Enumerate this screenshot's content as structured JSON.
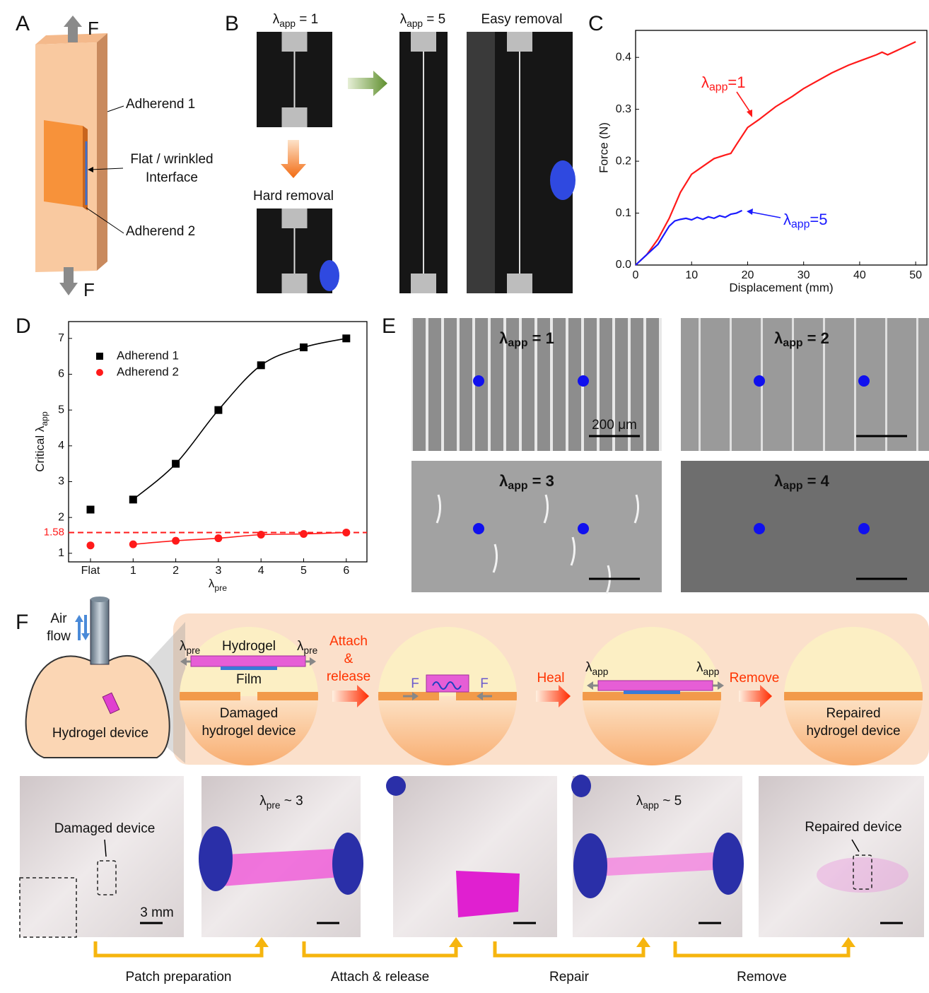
{
  "panel_labels": [
    "A",
    "B",
    "C",
    "D",
    "E",
    "F"
  ],
  "panel_a": {
    "force_top": "F",
    "force_bottom": "F",
    "adherend_1": "Adherend 1",
    "interface": [
      "Flat / wrinkled",
      "Interface"
    ],
    "adherend_2": "Adherend 2"
  },
  "panel_b": {
    "top_left": {
      "t": "λ",
      "sub": "app",
      "after": " = 1"
    },
    "middle": {
      "t": "λ",
      "sub": "app",
      "after": " = 5"
    },
    "right": "Easy removal",
    "bottom_left": "Hard removal"
  },
  "chart_data": [
    {
      "type": "line",
      "xlabel": "Displacement (mm)",
      "ylabel": "Force (N)",
      "xlim": [
        0,
        52
      ],
      "ylim": [
        0,
        0.452
      ],
      "xticks": [
        0,
        10,
        20,
        30,
        40,
        50
      ],
      "yticks": [
        {
          "value": 0,
          "label": "0.0"
        },
        0.1,
        0.2,
        0.3,
        0.4
      ],
      "series": [
        {
          "name": {
            "t": "λ",
            "sub": "app",
            "after": "=1"
          },
          "color": "#ff1a1a",
          "x": [
            0,
            2,
            4,
            6,
            8,
            10,
            12,
            14,
            16,
            17,
            18,
            20,
            22,
            25,
            28,
            30,
            35,
            38,
            40,
            43,
            44,
            45,
            48,
            50
          ],
          "values": [
            0,
            0.02,
            0.05,
            0.09,
            0.14,
            0.175,
            0.19,
            0.205,
            0.212,
            0.215,
            0.232,
            0.265,
            0.28,
            0.305,
            0.325,
            0.34,
            0.37,
            0.385,
            0.393,
            0.405,
            0.41,
            0.405,
            0.42,
            0.43
          ]
        },
        {
          "name": {
            "t": "λ",
            "sub": "app",
            "after": "=5"
          },
          "color": "#1a1aff",
          "x": [
            0,
            2,
            4,
            6,
            7,
            8,
            9,
            10,
            11,
            12,
            13,
            14,
            15,
            16,
            17,
            18,
            19
          ],
          "values": [
            0,
            0.02,
            0.04,
            0.075,
            0.085,
            0.088,
            0.09,
            0.087,
            0.092,
            0.088,
            0.093,
            0.09,
            0.095,
            0.092,
            0.098,
            0.1,
            0.105
          ]
        }
      ]
    },
    {
      "type": "scatter",
      "xlabel": {
        "t": "λ",
        "sub": "pre"
      },
      "ylabel": {
        "t": "Critical λ",
        "sub": "app"
      },
      "categories": [
        "Flat",
        "1",
        "2",
        "3",
        "4",
        "5",
        "6"
      ],
      "ylim": [
        0.76,
        7.47
      ],
      "yticks": [
        1,
        2,
        3,
        4,
        5,
        6,
        7
      ],
      "reference_line": {
        "value": 1.58,
        "label": "1.58",
        "color": "#ff1a1a"
      },
      "series": [
        {
          "name": "Adherend 1",
          "color": "#000000",
          "marker": "square",
          "values": [
            2.22,
            2.5,
            3.5,
            5.0,
            6.25,
            6.75,
            7.0
          ]
        },
        {
          "name": "Adherend 2",
          "color": "#ff1a1a",
          "marker": "circle",
          "values": [
            1.22,
            1.25,
            1.35,
            1.42,
            1.52,
            1.54,
            1.58
          ]
        }
      ]
    }
  ],
  "panel_e": {
    "images": [
      {
        "t": "λ",
        "sub": "app",
        "after": " = 1"
      },
      {
        "t": "λ",
        "sub": "app",
        "after": " = 2"
      },
      {
        "t": "λ",
        "sub": "app",
        "after": " = 3"
      },
      {
        "t": "λ",
        "sub": "app",
        "after": " = 4"
      }
    ],
    "scale_bar": "200 μm"
  },
  "panel_f": {
    "air_flow": [
      "Air",
      "flow"
    ],
    "hydrogel_device": "Hydrogel device",
    "pre_left": {
      "t": "λ",
      "sub": "pre"
    },
    "pre_right": {
      "t": "λ",
      "sub": "pre"
    },
    "hydrogel": "Hydrogel",
    "film": "Film",
    "damaged": [
      "Damaged",
      "hydrogel device"
    ],
    "attach": [
      "Attach",
      "&",
      "release"
    ],
    "force_left": "F",
    "force_right": "F",
    "heal": "Heal",
    "app_left": {
      "t": "λ",
      "sub": "app"
    },
    "app_right": {
      "t": "λ",
      "sub": "app"
    },
    "remove": "Remove",
    "repaired": [
      "Repaired",
      "hydrogel device"
    ],
    "photo_labels": {
      "damaged_device": "Damaged device",
      "scale": "3 mm",
      "pre": {
        "t": "λ",
        "sub": "pre",
        "after": " ~ 3"
      },
      "app": {
        "t": "λ",
        "sub": "app",
        "after": " ~ 5"
      },
      "repaired_device": "Repaired device"
    },
    "steps": [
      "Patch preparation",
      "Attach & release",
      "Repair",
      "Remove"
    ]
  }
}
